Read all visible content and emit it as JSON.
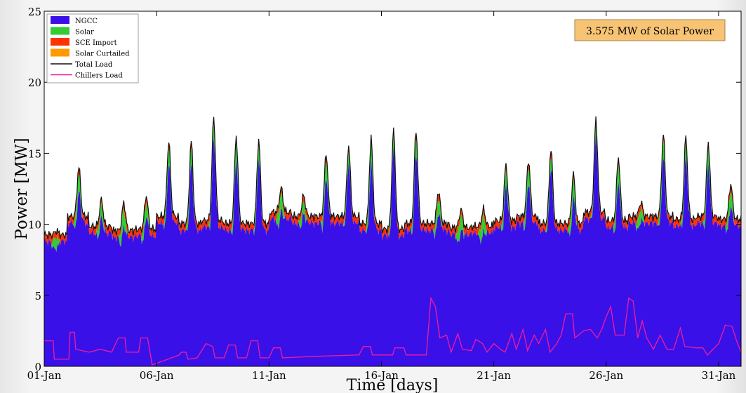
{
  "chart_data": {
    "type": "area",
    "title": "",
    "xlabel": "Time [days]",
    "ylabel": "Power [MW]",
    "xlim": [
      0,
      31
    ],
    "ylim": [
      0,
      25
    ],
    "x_ticks": [
      {
        "day": 0,
        "label": "01-Jan"
      },
      {
        "day": 5,
        "label": "06-Jan"
      },
      {
        "day": 10,
        "label": "11-Jan"
      },
      {
        "day": 15,
        "label": "16-Jan"
      },
      {
        "day": 20,
        "label": "21-Jan"
      },
      {
        "day": 25,
        "label": "26-Jan"
      },
      {
        "day": 30,
        "label": "31-Jan"
      }
    ],
    "y_ticks": [
      0,
      5,
      10,
      15,
      20,
      25
    ],
    "grid": false,
    "legend_position": "top-left",
    "annotation": "3.575 MW of Solar Power",
    "legend": [
      {
        "name": "NGCC",
        "kind": "area",
        "color": "#3a10e8"
      },
      {
        "name": "Solar",
        "kind": "area",
        "color": "#33cc33"
      },
      {
        "name": "SCE Import",
        "kind": "area",
        "color": "#ff3300"
      },
      {
        "name": "Solar Curtailed",
        "kind": "area",
        "color": "#ff9900"
      },
      {
        "name": "Total Load",
        "kind": "line",
        "color": "#111111"
      },
      {
        "name": "Chillers Load",
        "kind": "line",
        "color": "#ee1ca0"
      }
    ],
    "daily": [
      {
        "day": 1,
        "base": 9.2,
        "peak": 9.5
      },
      {
        "day": 2,
        "base": 10.5,
        "peak": 14.0
      },
      {
        "day": 3,
        "base": 9.8,
        "peak": 11.7
      },
      {
        "day": 4,
        "base": 9.5,
        "peak": 11.5
      },
      {
        "day": 5,
        "base": 9.6,
        "peak": 12.0
      },
      {
        "day": 6,
        "base": 10.5,
        "peak": 15.8
      },
      {
        "day": 7,
        "base": 10.0,
        "peak": 15.8
      },
      {
        "day": 8,
        "base": 10.2,
        "peak": 17.5
      },
      {
        "day": 9,
        "base": 10.0,
        "peak": 16.2
      },
      {
        "day": 10,
        "base": 10.0,
        "peak": 15.9
      },
      {
        "day": 11,
        "base": 10.8,
        "peak": 12.5
      },
      {
        "day": 12,
        "base": 10.5,
        "peak": 12.0
      },
      {
        "day": 13,
        "base": 10.5,
        "peak": 15.0
      },
      {
        "day": 14,
        "base": 10.5,
        "peak": 15.5
      },
      {
        "day": 15,
        "base": 10.0,
        "peak": 16.0
      },
      {
        "day": 16,
        "base": 9.6,
        "peak": 16.6
      },
      {
        "day": 17,
        "base": 10.0,
        "peak": 16.6
      },
      {
        "day": 18,
        "base": 10.0,
        "peak": 12.3
      },
      {
        "day": 19,
        "base": 9.7,
        "peak": 11.0
      },
      {
        "day": 20,
        "base": 9.8,
        "peak": 11.0
      },
      {
        "day": 21,
        "base": 10.2,
        "peak": 14.2
      },
      {
        "day": 22,
        "base": 10.5,
        "peak": 14.5
      },
      {
        "day": 23,
        "base": 10.0,
        "peak": 15.3
      },
      {
        "day": 24,
        "base": 10.0,
        "peak": 13.5
      },
      {
        "day": 25,
        "base": 10.8,
        "peak": 17.3
      },
      {
        "day": 26,
        "base": 10.2,
        "peak": 14.7
      },
      {
        "day": 27,
        "base": 10.5,
        "peak": 11.5
      },
      {
        "day": 28,
        "base": 10.5,
        "peak": 16.3
      },
      {
        "day": 29,
        "base": 10.3,
        "peak": 16.1
      },
      {
        "day": 30,
        "base": 10.5,
        "peak": 15.7
      },
      {
        "day": 31,
        "base": 10.3,
        "peak": 12.8
      }
    ],
    "chillers_load": [
      [
        0.0,
        1.8
      ],
      [
        0.4,
        1.8
      ],
      [
        0.45,
        0.5
      ],
      [
        1.1,
        0.5
      ],
      [
        1.15,
        2.4
      ],
      [
        1.35,
        2.4
      ],
      [
        1.4,
        1.2
      ],
      [
        2.0,
        1.0
      ],
      [
        2.5,
        1.2
      ],
      [
        3.0,
        1.0
      ],
      [
        3.3,
        2.0
      ],
      [
        3.6,
        2.0
      ],
      [
        3.65,
        1.0
      ],
      [
        4.2,
        1.0
      ],
      [
        4.3,
        2.0
      ],
      [
        4.6,
        2.0
      ],
      [
        4.65,
        1.5
      ],
      [
        4.8,
        0.1
      ],
      [
        5.5,
        0.5
      ],
      [
        6.0,
        0.8
      ],
      [
        6.1,
        1.0
      ],
      [
        6.3,
        1.0
      ],
      [
        6.4,
        0.5
      ],
      [
        6.8,
        0.6
      ],
      [
        7.2,
        1.6
      ],
      [
        7.5,
        1.4
      ],
      [
        7.6,
        0.6
      ],
      [
        8.0,
        0.6
      ],
      [
        8.2,
        1.5
      ],
      [
        8.5,
        1.5
      ],
      [
        8.6,
        0.6
      ],
      [
        9.0,
        0.6
      ],
      [
        9.2,
        1.8
      ],
      [
        9.5,
        1.8
      ],
      [
        9.6,
        0.6
      ],
      [
        10.0,
        0.6
      ],
      [
        10.2,
        1.3
      ],
      [
        10.5,
        1.3
      ],
      [
        10.6,
        0.6
      ],
      [
        12.0,
        0.7
      ],
      [
        14.0,
        0.8
      ],
      [
        14.2,
        1.4
      ],
      [
        14.5,
        1.4
      ],
      [
        14.6,
        0.8
      ],
      [
        15.5,
        0.8
      ],
      [
        15.6,
        1.3
      ],
      [
        16.0,
        1.3
      ],
      [
        16.1,
        0.8
      ],
      [
        17.0,
        0.8
      ],
      [
        17.2,
        4.8
      ],
      [
        17.4,
        4.2
      ],
      [
        17.6,
        2.0
      ],
      [
        17.9,
        2.2
      ],
      [
        18.1,
        1.0
      ],
      [
        18.4,
        2.3
      ],
      [
        18.6,
        1.2
      ],
      [
        19.0,
        1.1
      ],
      [
        19.2,
        1.9
      ],
      [
        19.5,
        1.6
      ],
      [
        19.7,
        1.0
      ],
      [
        20.0,
        1.6
      ],
      [
        20.3,
        1.2
      ],
      [
        20.5,
        1.0
      ],
      [
        20.8,
        2.3
      ],
      [
        21.0,
        1.2
      ],
      [
        21.3,
        2.6
      ],
      [
        21.5,
        1.1
      ],
      [
        21.8,
        2.2
      ],
      [
        22.0,
        1.6
      ],
      [
        22.3,
        2.6
      ],
      [
        22.5,
        1.0
      ],
      [
        22.8,
        1.6
      ],
      [
        23.0,
        2.2
      ],
      [
        23.2,
        3.7
      ],
      [
        23.5,
        3.7
      ],
      [
        23.6,
        2.0
      ],
      [
        24.0,
        2.5
      ],
      [
        24.3,
        2.6
      ],
      [
        24.6,
        2.0
      ],
      [
        24.8,
        2.6
      ],
      [
        25.0,
        3.5
      ],
      [
        25.2,
        4.2
      ],
      [
        25.4,
        2.2
      ],
      [
        25.8,
        2.2
      ],
      [
        26.0,
        4.8
      ],
      [
        26.2,
        4.6
      ],
      [
        26.4,
        2.0
      ],
      [
        26.6,
        3.2
      ],
      [
        26.8,
        2.0
      ],
      [
        27.1,
        1.2
      ],
      [
        27.4,
        2.2
      ],
      [
        27.7,
        1.2
      ],
      [
        28.0,
        1.2
      ],
      [
        28.3,
        2.7
      ],
      [
        28.5,
        1.4
      ],
      [
        29.0,
        1.3
      ],
      [
        29.3,
        1.3
      ],
      [
        29.5,
        0.8
      ],
      [
        30.0,
        1.6
      ],
      [
        30.3,
        2.9
      ],
      [
        30.6,
        2.8
      ],
      [
        30.8,
        1.8
      ],
      [
        31.0,
        1.0
      ]
    ]
  }
}
